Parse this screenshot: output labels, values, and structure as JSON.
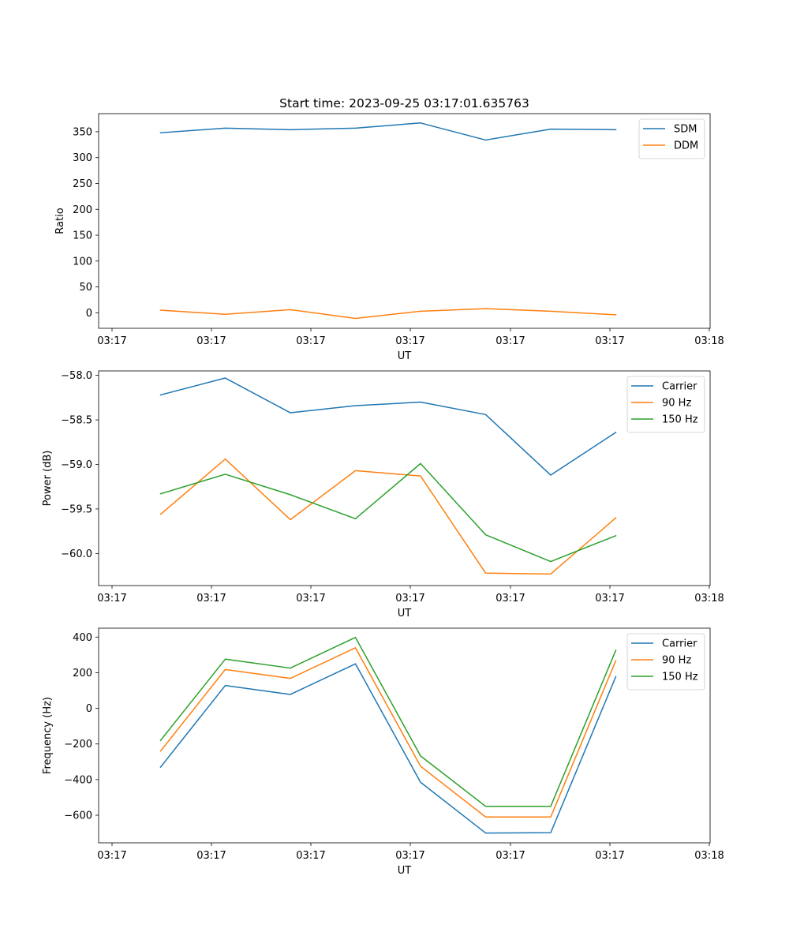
{
  "chart_data": [
    {
      "type": "line",
      "title": "Start time: 2023-09-25 03:17:01.635763",
      "xlabel": "UT",
      "ylabel": "Ratio",
      "x_tick_labels": [
        "03:17",
        "03:17",
        "03:17",
        "03:17",
        "03:17",
        "03:17",
        "03:18"
      ],
      "y_ticks": [
        0,
        50,
        100,
        150,
        200,
        250,
        300,
        350
      ],
      "y_tick_labels": [
        "0",
        "50",
        "100",
        "150",
        "200",
        "250",
        "300",
        "350"
      ],
      "ylim": [
        -30,
        385
      ],
      "legend_position": "top-right",
      "series": [
        {
          "name": "SDM",
          "color": "#1f77b4",
          "values": [
            348,
            357,
            354,
            357,
            367,
            334,
            355,
            354
          ]
        },
        {
          "name": "DDM",
          "color": "#ff7f0e",
          "values": [
            5,
            -3,
            6,
            -11,
            3,
            8,
            3,
            -4
          ]
        }
      ]
    },
    {
      "type": "line",
      "title": "",
      "xlabel": "UT",
      "ylabel": "Power (dB)",
      "x_tick_labels": [
        "03:17",
        "03:17",
        "03:17",
        "03:17",
        "03:17",
        "03:17",
        "03:18"
      ],
      "y_ticks": [
        -60.0,
        -59.5,
        -59.0,
        -58.5,
        -58.0
      ],
      "y_tick_labels": [
        "−60.0",
        "−59.5",
        "−59.0",
        "−58.5",
        "−58.0"
      ],
      "ylim": [
        -60.36,
        -57.95
      ],
      "legend_position": "top-right",
      "series": [
        {
          "name": "Carrier",
          "color": "#1f77b4",
          "values": [
            -58.22,
            -58.03,
            -58.42,
            -58.34,
            -58.3,
            -58.44,
            -59.12,
            -58.64
          ]
        },
        {
          "name": "90 Hz",
          "color": "#ff7f0e",
          "values": [
            -59.56,
            -58.94,
            -59.62,
            -59.07,
            -59.13,
            -60.22,
            -60.23,
            -59.6
          ]
        },
        {
          "name": "150 Hz",
          "color": "#2ca02c",
          "values": [
            -59.33,
            -59.11,
            -59.34,
            -59.61,
            -58.99,
            -59.79,
            -60.09,
            -59.8
          ]
        }
      ]
    },
    {
      "type": "line",
      "title": "",
      "xlabel": "UT",
      "ylabel": "Frequency (Hz)",
      "x_tick_labels": [
        "03:17",
        "03:17",
        "03:17",
        "03:17",
        "03:17",
        "03:17",
        "03:18"
      ],
      "y_ticks": [
        -600,
        -400,
        -200,
        0,
        200,
        400
      ],
      "y_tick_labels": [
        "−600",
        "−400",
        "−200",
        "0",
        "200",
        "400"
      ],
      "ylim": [
        -755,
        450
      ],
      "legend_position": "top-right",
      "series": [
        {
          "name": "Carrier",
          "color": "#1f77b4",
          "values": [
            -330,
            128,
            78,
            250,
            -415,
            -700,
            -698,
            178
          ]
        },
        {
          "name": "90 Hz",
          "color": "#ff7f0e",
          "values": [
            -240,
            218,
            168,
            340,
            -325,
            -610,
            -610,
            268
          ]
        },
        {
          "name": "150 Hz",
          "color": "#2ca02c",
          "values": [
            -180,
            276,
            226,
            398,
            -267,
            -550,
            -550,
            326
          ]
        }
      ]
    }
  ]
}
